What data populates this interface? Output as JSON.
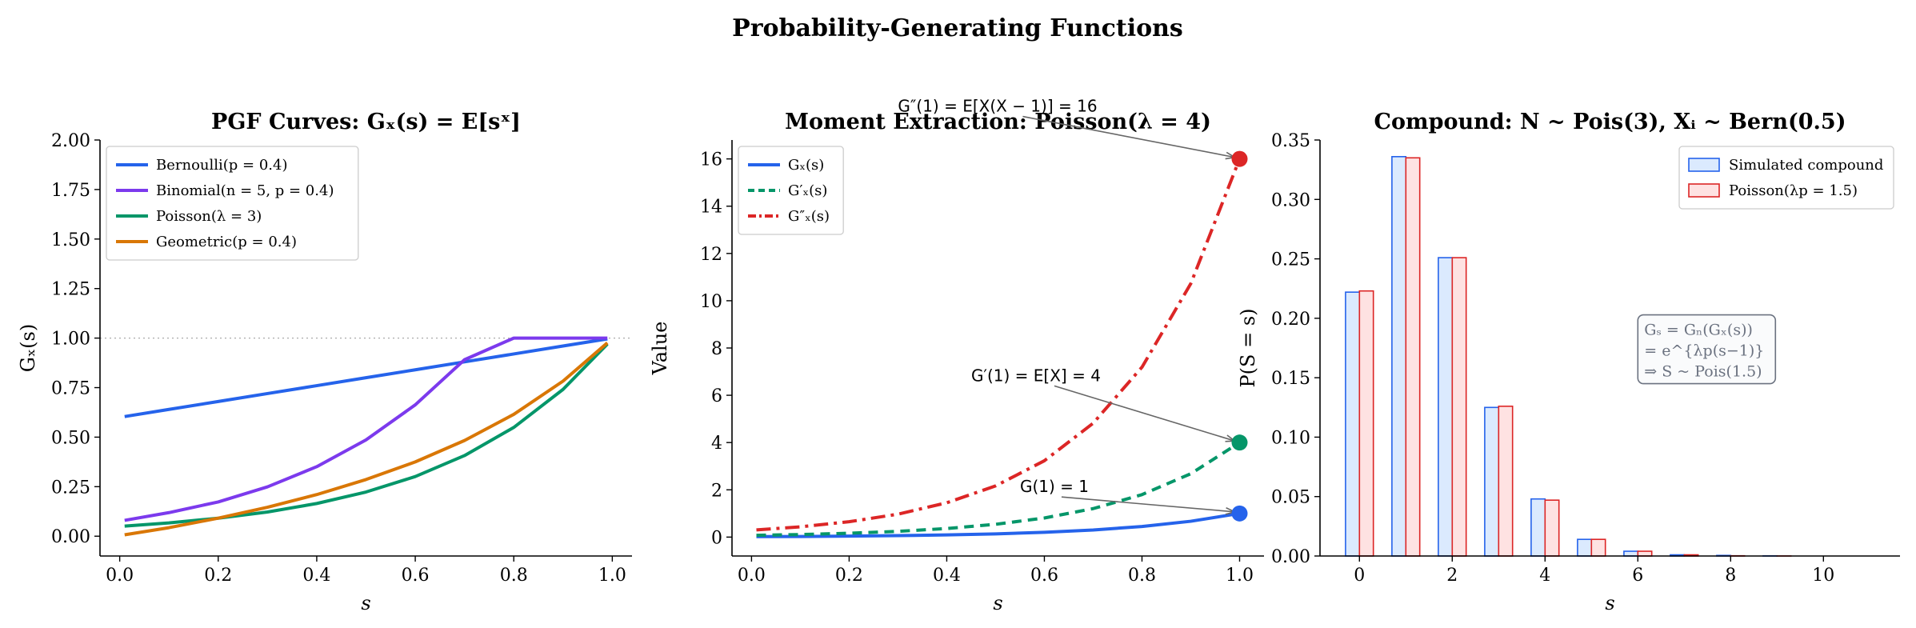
{
  "figure": {
    "suptitle": "Probability-Generating Functions"
  },
  "chart_data": [
    {
      "type": "line",
      "title": "PGF Curves: Gₓ(s) = E[sˣ]",
      "xlabel": "s",
      "ylabel": "Gₓ(s)",
      "xlim": [
        -0.04,
        1.04
      ],
      "ylim": [
        -0.1,
        2.0
      ],
      "xticks": [
        0.0,
        0.2,
        0.4,
        0.6,
        0.8,
        1.0
      ],
      "xtick_labels": [
        "0.0",
        "0.2",
        "0.4",
        "0.6",
        "0.8",
        "1.0"
      ],
      "yticks": [
        0.0,
        0.25,
        0.5,
        0.75,
        1.0,
        1.25,
        1.5,
        1.75,
        2.0
      ],
      "ytick_labels": [
        "0.00",
        "0.25",
        "0.50",
        "0.75",
        "1.00",
        "1.25",
        "1.50",
        "1.75",
        "2.00"
      ],
      "reference_line": {
        "y": 1.0,
        "style": "dotted",
        "color": "#aaaaaa"
      },
      "legend_position": "top-left",
      "series": [
        {
          "name": "Bernoulli(p = 0.4)",
          "color": "#2563eb",
          "x": [
            0.01,
            0.1,
            0.2,
            0.3,
            0.4,
            0.5,
            0.6,
            0.7,
            0.8,
            0.9,
            0.99
          ],
          "y": [
            0.604,
            0.64,
            0.68,
            0.72,
            0.76,
            0.8,
            0.84,
            0.88,
            0.92,
            0.96,
            0.996
          ]
        },
        {
          "name": "Binomial(n = 5, p = 0.4)",
          "color": "#7c3aed",
          "x": [
            0.01,
            0.1,
            0.2,
            0.3,
            0.4,
            0.5,
            0.6,
            0.7,
            0.8,
            0.9,
            0.99
          ],
          "y": [
            0.08,
            0.119,
            0.173,
            0.249,
            0.351,
            0.486,
            0.663,
            0.891,
            1.0,
            1.0,
            1.0
          ]
        },
        {
          "name": "Poisson(λ = 3)",
          "color": "#059669",
          "x": [
            0.01,
            0.1,
            0.2,
            0.3,
            0.4,
            0.5,
            0.6,
            0.7,
            0.8,
            0.9,
            0.99
          ],
          "y": [
            0.051,
            0.067,
            0.091,
            0.122,
            0.165,
            0.223,
            0.301,
            0.407,
            0.549,
            0.741,
            0.97
          ]
        },
        {
          "name": "Geometric(p = 0.4)",
          "color": "#d97706",
          "x": [
            0.01,
            0.1,
            0.2,
            0.3,
            0.4,
            0.5,
            0.6,
            0.7,
            0.8,
            0.9,
            0.99
          ],
          "y": [
            0.007,
            0.043,
            0.091,
            0.146,
            0.21,
            0.286,
            0.375,
            0.483,
            0.615,
            0.783,
            0.976
          ]
        }
      ]
    },
    {
      "type": "line",
      "title": "Moment Extraction: Poisson(λ = 4)",
      "xlabel": "s",
      "ylabel": "Value",
      "xlim": [
        -0.04,
        1.05
      ],
      "ylim": [
        -0.8,
        16.8
      ],
      "xticks": [
        0.0,
        0.2,
        0.4,
        0.6,
        0.8,
        1.0
      ],
      "xtick_labels": [
        "0.0",
        "0.2",
        "0.4",
        "0.6",
        "0.8",
        "1.0"
      ],
      "yticks": [
        0,
        2,
        4,
        6,
        8,
        10,
        12,
        14,
        16
      ],
      "ytick_labels": [
        "0",
        "2",
        "4",
        "6",
        "8",
        "10",
        "12",
        "14",
        "16"
      ],
      "legend_position": "top-left",
      "series": [
        {
          "name": "Gₓ(s)",
          "color": "#2563eb",
          "dash": "",
          "x": [
            0.01,
            0.1,
            0.2,
            0.3,
            0.4,
            0.5,
            0.6,
            0.7,
            0.8,
            0.9,
            1.0
          ],
          "y": [
            0.019,
            0.027,
            0.041,
            0.061,
            0.091,
            0.135,
            0.202,
            0.301,
            0.449,
            0.67,
            1.0
          ]
        },
        {
          "name": "G′ₓ(s)",
          "color": "#059669",
          "dash": "12,8",
          "x": [
            0.01,
            0.1,
            0.2,
            0.3,
            0.4,
            0.5,
            0.6,
            0.7,
            0.8,
            0.9,
            1.0
          ],
          "y": [
            0.076,
            0.109,
            0.163,
            0.243,
            0.363,
            0.541,
            0.808,
            1.205,
            1.797,
            2.681,
            4.0
          ]
        },
        {
          "name": "G″ₓ(s)",
          "color": "#dc2626",
          "dash": "18,7,4,7",
          "x": [
            0.01,
            0.1,
            0.2,
            0.3,
            0.4,
            0.5,
            0.6,
            0.7,
            0.8,
            0.9,
            1.0
          ],
          "y": [
            0.305,
            0.435,
            0.65,
            0.97,
            1.452,
            2.165,
            3.23,
            4.819,
            7.189,
            10.725,
            16.0
          ]
        }
      ],
      "markers": [
        {
          "x": 1.0,
          "y": 1.0,
          "color": "#2563eb"
        },
        {
          "x": 1.0,
          "y": 4.0,
          "color": "#059669"
        },
        {
          "x": 1.0,
          "y": 16.0,
          "color": "#dc2626"
        }
      ],
      "annotations": [
        {
          "text": "G(1) = 1",
          "target_x": 1.0,
          "target_y": 1.0,
          "text_x": 0.55,
          "text_y": 1.9
        },
        {
          "text": "G′(1) = E[X] = 4",
          "target_x": 1.0,
          "target_y": 4.0,
          "text_x": 0.45,
          "text_y": 6.6
        },
        {
          "text": "G″(1) = E[X(X − 1)] = 16",
          "target_x": 1.0,
          "target_y": 16.0,
          "text_x": 0.3,
          "text_y": 18.0
        }
      ]
    },
    {
      "type": "bar",
      "title": "Compound: N ~ Pois(3), Xᵢ ~ Bern(0.5)",
      "xlabel": "s",
      "ylabel": "P(S = s)",
      "xlim": [
        -0.85,
        11.65
      ],
      "ylim": [
        0,
        0.35
      ],
      "xticks": [
        0,
        2,
        4,
        6,
        8,
        10
      ],
      "xtick_labels": [
        "0",
        "2",
        "4",
        "6",
        "8",
        "10"
      ],
      "yticks": [
        0.0,
        0.05,
        0.1,
        0.15,
        0.2,
        0.25,
        0.3,
        0.35
      ],
      "ytick_labels": [
        "0.00",
        "0.05",
        "0.10",
        "0.15",
        "0.20",
        "0.25",
        "0.30",
        "0.35"
      ],
      "legend_position": "top-right",
      "categories": [
        0,
        1,
        2,
        3,
        4,
        5,
        6,
        7,
        8,
        9,
        10,
        11
      ],
      "series": [
        {
          "name": "Simulated compound",
          "fill": "#dbeafe",
          "stroke": "#2563eb",
          "values": [
            0.222,
            0.336,
            0.251,
            0.125,
            0.048,
            0.014,
            0.004,
            0.001,
            0.0005,
            0.0001,
            0.0,
            0.0
          ]
        },
        {
          "name": "Poisson(λp = 1.5)",
          "fill": "#fee2e2",
          "stroke": "#dc2626",
          "values": [
            0.223,
            0.335,
            0.251,
            0.126,
            0.047,
            0.014,
            0.004,
            0.001,
            0.0002,
            3e-05,
            0.0,
            0.0
          ]
        }
      ],
      "info_box": {
        "lines": [
          "Gₛ = Gₙ(Gₓ(s))",
          "= e^{λp(s−1)}",
          "⇒ S ~ Pois(1.5)"
        ],
        "x": 6.0,
        "y": 0.18
      }
    }
  ]
}
